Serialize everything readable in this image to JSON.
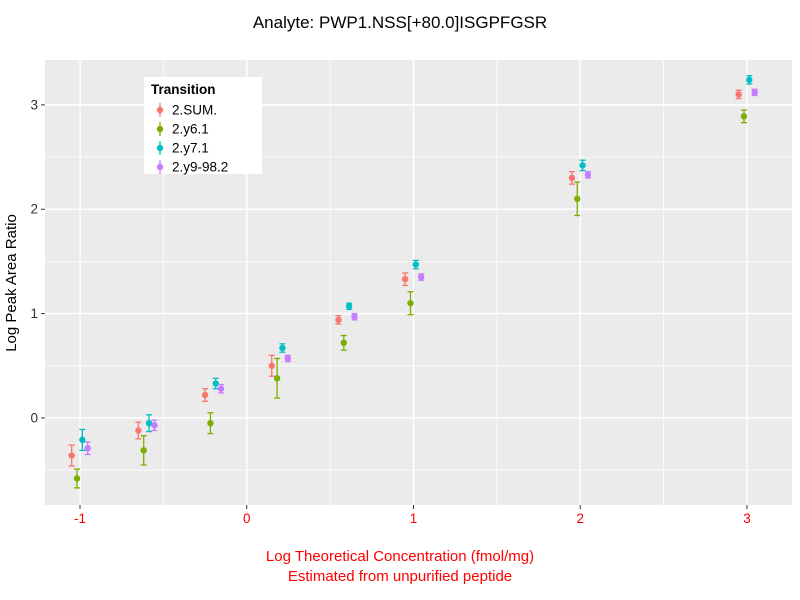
{
  "chart_data": {
    "type": "scatter",
    "title": "Analyte: PWP1.NSS[+80.0]ISGPFGSR",
    "ylabel": "Log Peak Area Ratio",
    "xlabel": "Log Theoretical Concentration (fmol/mg)",
    "xlabel2": "Estimated from unpurified peptide",
    "xlim": [
      -1.21,
      3.27
    ],
    "ylim": [
      -0.834,
      3.43
    ],
    "x_major_ticks": [
      -1,
      0,
      1,
      2,
      3
    ],
    "x_minor_ticks": [
      -0.5,
      0.5,
      1.5,
      2.5
    ],
    "y_major_ticks": [
      0,
      1,
      2,
      3
    ],
    "y_minor_ticks": [
      -0.5,
      0.5,
      1.5,
      2.5
    ],
    "grid": true,
    "legend": {
      "title": "Transition",
      "position": "top-left"
    },
    "colors": {
      "plot_bg": "#EBEBEB",
      "grid": "#FFFFFF",
      "axis_text": "#333333",
      "x_axis_accent": "#FF0000",
      "legend_bg": "#FFFFFF",
      "tick_mark": "#333333"
    },
    "x": [
      -1,
      -0.6,
      -0.2,
      0.2,
      0.6,
      1,
      2,
      3
    ],
    "dodge": [
      -0.05,
      -0.018,
      0.014,
      0.046
    ],
    "series": [
      {
        "name": "2.SUM.",
        "color": "#F8766D",
        "values": [
          -0.36,
          -0.12,
          0.22,
          0.5,
          0.94,
          1.33,
          2.3,
          3.1
        ],
        "errors": [
          0.1,
          0.08,
          0.06,
          0.1,
          0.04,
          0.06,
          0.06,
          0.04
        ]
      },
      {
        "name": "2.y6.1",
        "color": "#7CAE00",
        "values": [
          -0.58,
          -0.31,
          -0.05,
          0.38,
          0.72,
          1.1,
          2.1,
          2.89
        ],
        "errors": [
          0.09,
          0.14,
          0.1,
          0.19,
          0.07,
          0.11,
          0.16,
          0.06
        ]
      },
      {
        "name": "2.y7.1",
        "color": "#00BFC4",
        "values": [
          -0.21,
          -0.05,
          0.33,
          0.67,
          1.07,
          1.47,
          2.42,
          3.24
        ],
        "errors": [
          0.1,
          0.08,
          0.05,
          0.04,
          0.03,
          0.04,
          0.05,
          0.04
        ]
      },
      {
        "name": "2.y9-98.2",
        "color": "#C77CFF",
        "values": [
          -0.29,
          -0.07,
          0.28,
          0.57,
          0.97,
          1.35,
          2.33,
          3.12
        ],
        "errors": [
          0.06,
          0.05,
          0.04,
          0.03,
          0.03,
          0.03,
          0.03,
          0.03
        ]
      }
    ]
  }
}
